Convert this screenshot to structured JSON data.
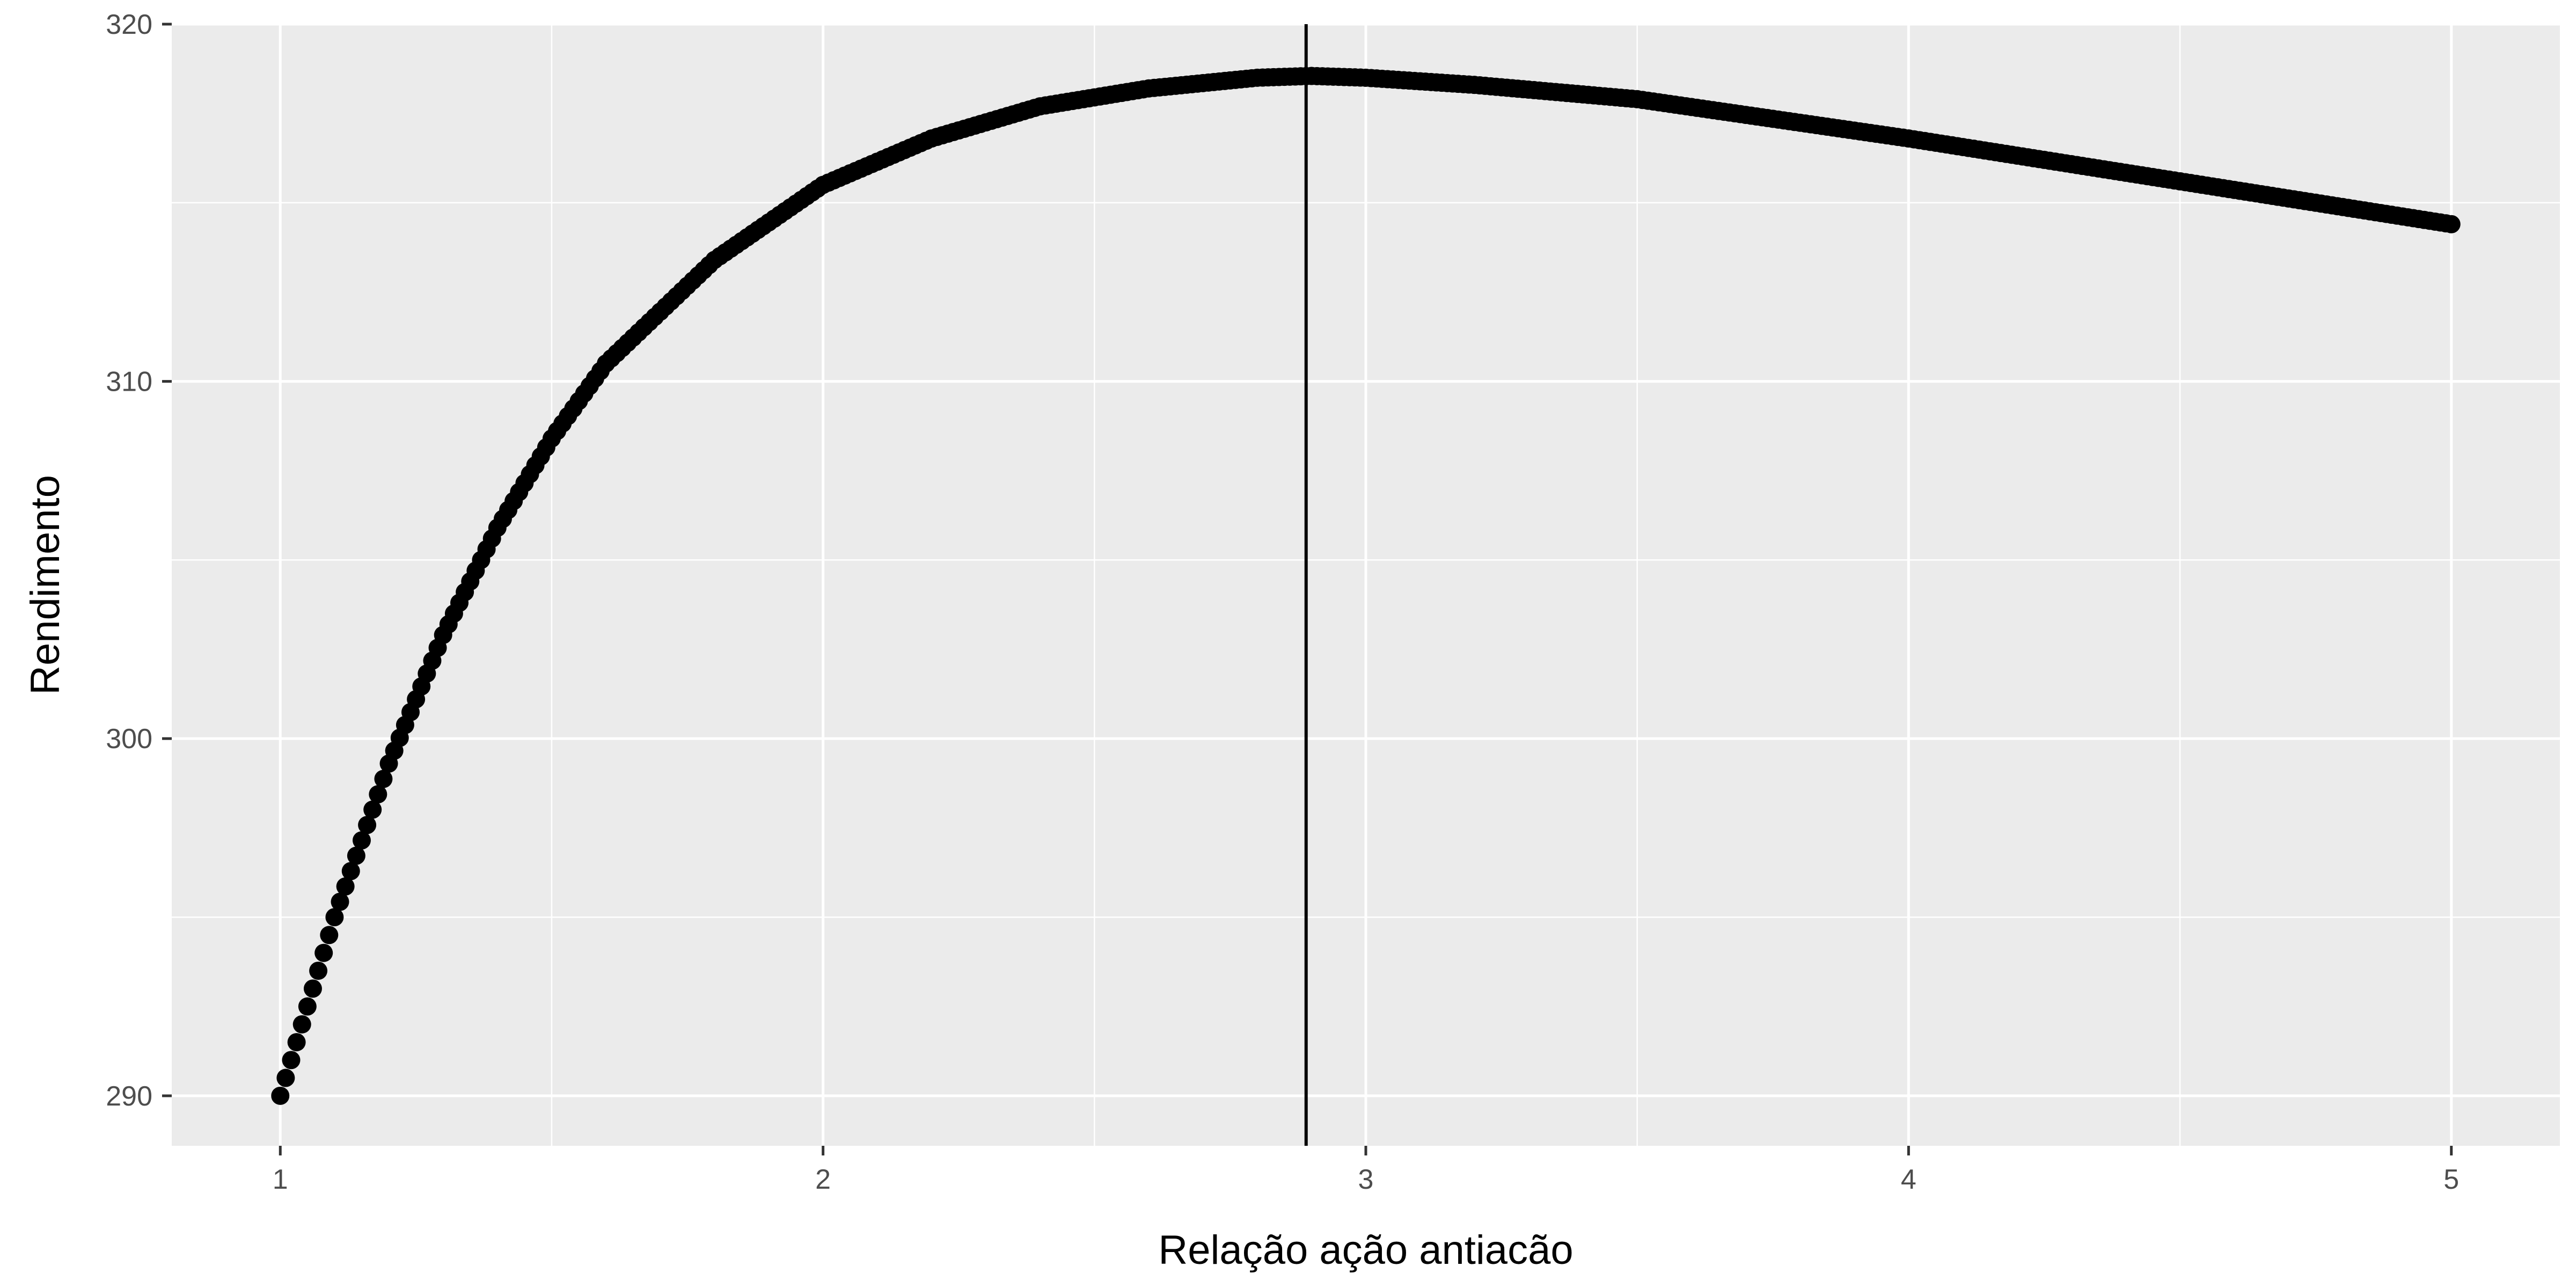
{
  "chart_data": {
    "type": "scatter",
    "title": "",
    "xlabel": "Relação ação antiacão",
    "ylabel": "Rendimento",
    "xlim": [
      0.8,
      5.2
    ],
    "ylim": [
      288.6,
      320.0
    ],
    "xticks": [
      1,
      2,
      3,
      4,
      5
    ],
    "yticks": [
      290,
      300,
      310,
      320
    ],
    "x_tick_labels": [
      "1",
      "2",
      "3",
      "4",
      "5"
    ],
    "y_tick_labels": [
      "290",
      "300",
      "310",
      "320"
    ],
    "grid": true,
    "legend": "none",
    "vline_x": 2.89,
    "series": [
      {
        "points_x": [
          1.0,
          1.1,
          1.2,
          1.3,
          1.4,
          1.5,
          1.6,
          1.8,
          2.0,
          2.2,
          2.4,
          2.6,
          2.8,
          2.9,
          3.0,
          3.2,
          3.5,
          4.0,
          4.5,
          5.0
        ],
        "points_y": [
          290.0,
          295.0,
          299.3,
          302.9,
          305.9,
          308.4,
          310.5,
          313.4,
          315.5,
          316.8,
          317.7,
          318.2,
          318.5,
          318.55,
          318.5,
          318.3,
          317.9,
          316.8,
          315.6,
          314.4
        ]
      }
    ],
    "colors": {
      "panel": "#ebebeb",
      "grid_major": "#ffffff",
      "points": "#000000",
      "vline": "#000000",
      "tick_text": "#4d4d4d",
      "axis_text": "#000000"
    }
  }
}
